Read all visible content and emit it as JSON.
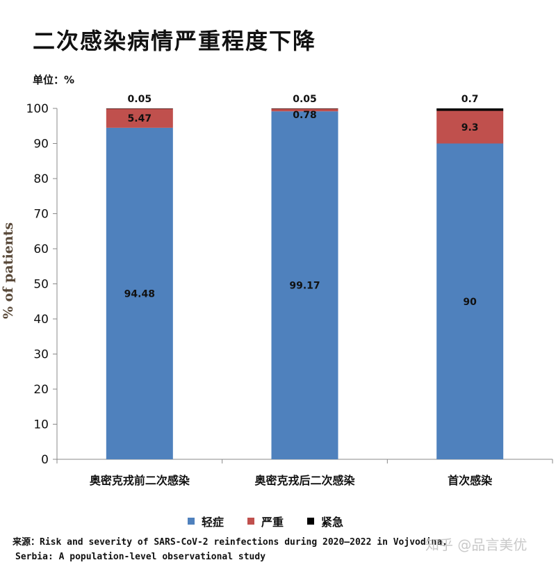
{
  "chart_title": "二次感染病情严重程度下降",
  "unit_label": "单位：%",
  "source": {
    "line1": "来源：Risk and severity of SARS-CoV-2 reinfections during 2020–2022 in Vojvodina,",
    "line2": "Serbia: A population-level observational study"
  },
  "watermark": "知乎 @品言美优",
  "colors": {
    "mild": "#4f81bd",
    "severe": "#c0504d",
    "critical": "#000000"
  },
  "chart_data": {
    "type": "bar",
    "stacked": true,
    "title": "二次感染病情严重程度下降",
    "ylabel": "% of patients",
    "xlabel": "",
    "ylim": [
      0,
      100
    ],
    "yticks": [
      0,
      10,
      20,
      30,
      40,
      50,
      60,
      70,
      80,
      90,
      100
    ],
    "grid": false,
    "legend_position": "bottom",
    "categories": [
      "奥密克戎前二次感染",
      "奥密克戎后二次感染",
      "首次感染"
    ],
    "series": [
      {
        "name": "轻症",
        "color": "#4f81bd",
        "values": [
          94.48,
          99.17,
          90
        ],
        "labels": [
          "94.48",
          "99.17",
          "90"
        ]
      },
      {
        "name": "严重",
        "color": "#c0504d",
        "values": [
          5.47,
          0.78,
          9.3
        ],
        "labels": [
          "5.47",
          "0.78",
          "9.3"
        ]
      },
      {
        "name": "紧急",
        "color": "#000000",
        "values": [
          0.05,
          0.05,
          0.7
        ],
        "labels": [
          "0.05",
          "0.05",
          "0.7"
        ]
      }
    ]
  }
}
